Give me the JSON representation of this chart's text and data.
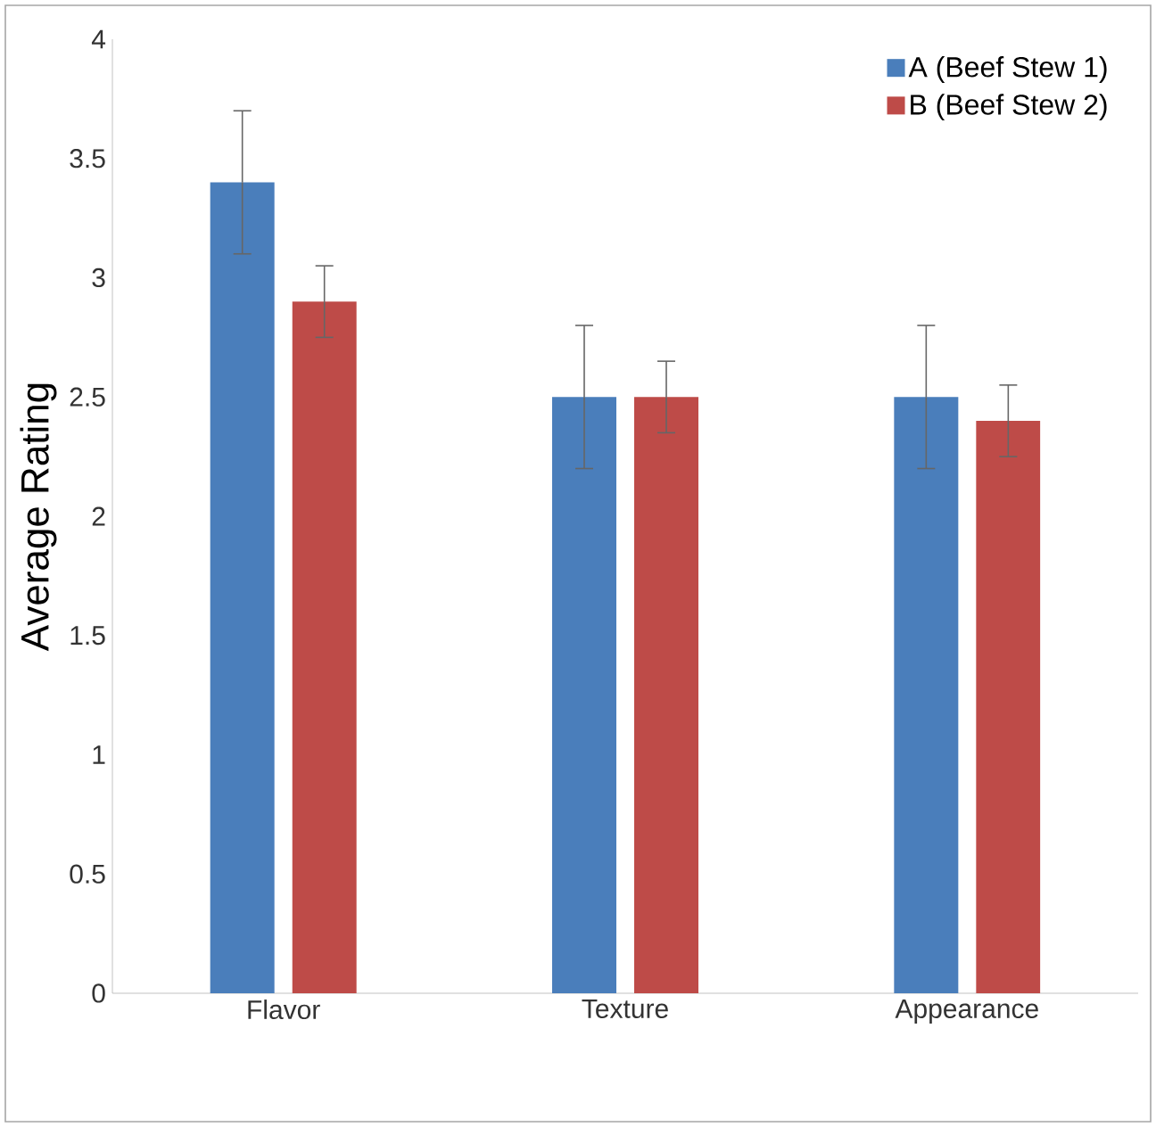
{
  "chart_data": {
    "type": "bar",
    "ylabel": "Average Rating",
    "categories": [
      "Flavor",
      "Texture",
      "Appearance"
    ],
    "series": [
      {
        "name": "A (Beef Stew 1)",
        "color": "#4a7ebb",
        "values": [
          3.4,
          2.5,
          2.5
        ],
        "errors": [
          0.3,
          0.3,
          0.3
        ]
      },
      {
        "name": "B (Beef Stew 2)",
        "color": "#be4b48",
        "values": [
          2.9,
          2.5,
          2.4
        ],
        "errors": [
          0.15,
          0.15,
          0.15
        ]
      }
    ],
    "ylim": [
      0,
      4
    ],
    "yticks": [
      0,
      0.5,
      1,
      1.5,
      2,
      2.5,
      3,
      3.5,
      4
    ],
    "grid": false,
    "legend": "top right"
  }
}
